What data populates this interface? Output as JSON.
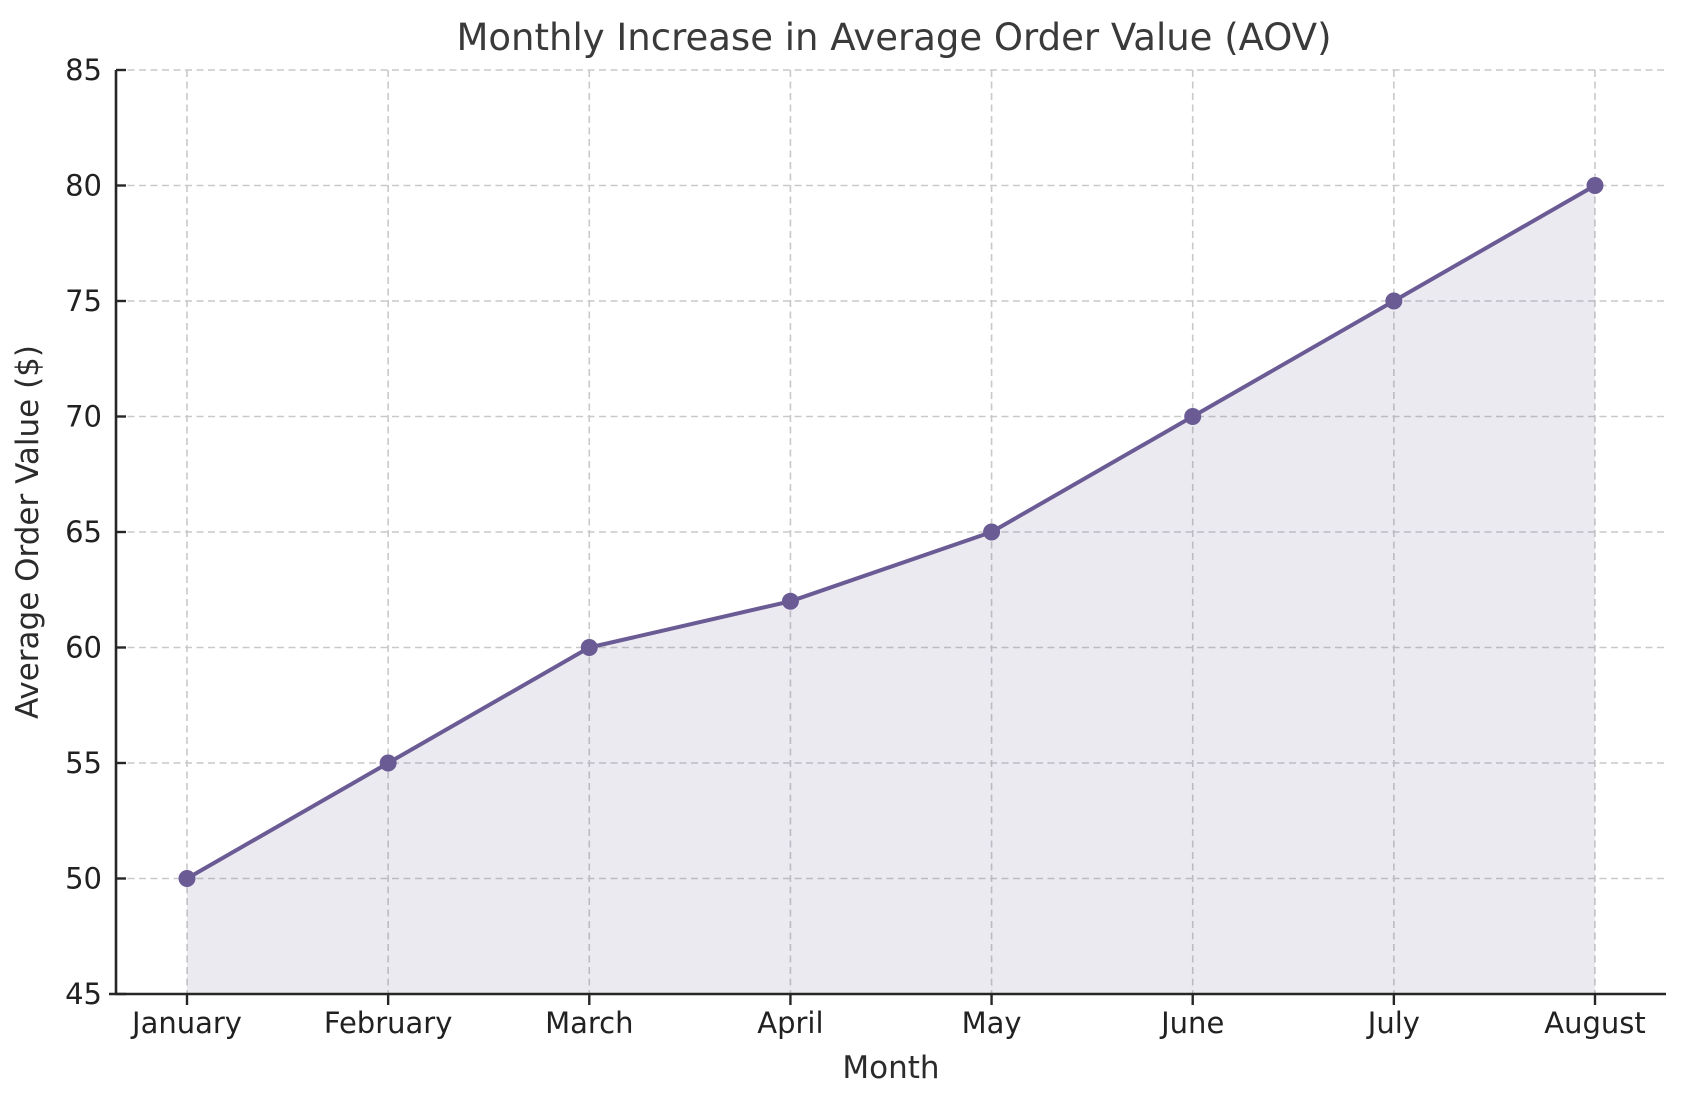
{
  "chart_data": {
    "type": "line",
    "title": "Monthly Increase in Average Order Value (AOV)",
    "xlabel": "Month",
    "ylabel": "Average Order Value ($)",
    "categories": [
      "January",
      "February",
      "March",
      "April",
      "May",
      "June",
      "July",
      "August"
    ],
    "series": [
      {
        "name": "Average Order Value",
        "values": [
          50,
          55,
          60,
          62,
          65,
          70,
          75,
          80
        ]
      }
    ],
    "ylim": [
      45,
      85
    ],
    "ytick_step": 5,
    "yticks": [
      45,
      50,
      55,
      60,
      65,
      70,
      75,
      80,
      85
    ],
    "grid": true,
    "grid_style": "dashed",
    "legend": "none",
    "colors": {
      "line": "#6b5b95",
      "marker": "#6b5b95",
      "area_fill": "rgba(107,91,149,0.13)",
      "grid": "#c9c9c9",
      "spine": "#262626",
      "tick_text": "#212121",
      "title_text": "#3a3a3a"
    },
    "marker": "circle",
    "area_under_line": true
  }
}
